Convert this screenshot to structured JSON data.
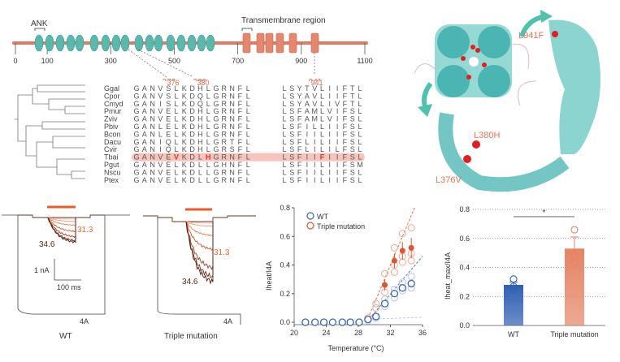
{
  "domain_panel": {
    "ank_label": "ANK",
    "tm_label": "Transmembrane region",
    "axis_ticks": [
      "0",
      "100",
      "300",
      "500",
      "700",
      "900",
      "1100"
    ],
    "axis_values": [
      0,
      100,
      300,
      500,
      700,
      900,
      1100
    ],
    "ank_repeat_count": 17,
    "tm_segment_count": 6,
    "sites": [
      {
        "label": "376",
        "value": 376
      },
      {
        "label": "380",
        "value": 380
      },
      {
        "label": "941",
        "value": 941
      }
    ],
    "colors": {
      "backbone": "#e07a63",
      "ank": "#5ab8ad",
      "tm": "#e5866e",
      "site_label": "#e2684f"
    }
  },
  "alignment": {
    "site_labels": [
      "376",
      "380",
      "941"
    ],
    "rows": [
      {
        "species": "Ggal",
        "seq1": "GANVSLKDHLGRNFL",
        "seq2": "LSYTVLIIFTL"
      },
      {
        "species": "Cpor",
        "seq1": "GANVSLKDQLGRNFL",
        "seq2": "LSYAVLIIFTL"
      },
      {
        "species": "Cmyd",
        "seq1": "GANISLKDQLGRNFL",
        "seq2": "LSYAVLIVFTL"
      },
      {
        "species": "Pmur",
        "seq1": "GANVELKDHLGRNFL",
        "seq2": "LSFAMLVIFSL"
      },
      {
        "species": "Zviv",
        "seq1": "GANVELKDHLGRNFL",
        "seq2": "LSFAMLVIFSL"
      },
      {
        "species": "Pbiv",
        "seq1": "GANLELKDHLGRNFL",
        "seq2": "LSFILLIIFSL"
      },
      {
        "species": "Bcon",
        "seq1": "GANLELKDHLGRNFL",
        "seq2": "LSFIILIIFSL"
      },
      {
        "species": "Dacu",
        "seq1": "GANIQLKDHLGRTFL",
        "seq2": "LSFLILIIFSL"
      },
      {
        "species": "Cvir",
        "seq1": "GANIQLKDHLGRSFL",
        "seq2": "LSFLILILFSL"
      },
      {
        "species": "Tbai",
        "seq1": "GANVEVKDLHGRNFL",
        "seq2": "LSFIIFIIFSL",
        "highlight": true,
        "mut1": [
          5,
          9
        ],
        "mut2": [
          5
        ]
      },
      {
        "species": "Pgut",
        "seq1": "GANVELKDLLGHNFL",
        "seq2": "LSFIILIIFSM"
      },
      {
        "species": "Nscu",
        "seq1": "GANVELKDLLGRNFL",
        "seq2": "LSFIILIIFSL"
      },
      {
        "species": "Ptex",
        "seq1": "GANVELKDLLGRNFL",
        "seq2": "LSFIILIIFSL"
      }
    ],
    "highlight_color": "#f7c3bb",
    "mutation_color": "#e8312a"
  },
  "structure": {
    "labels": [
      "L941F",
      "L380H",
      "L376V"
    ],
    "label_color": "#e5735c",
    "arrow_color": "#4fc2ae"
  },
  "traces": {
    "wt": {
      "title": "WT",
      "low_temp": "31.3",
      "high_temp": "34.6",
      "ref_label": "4A"
    },
    "triple": {
      "title": "Triple mutation",
      "low_temp": "31.3",
      "high_temp": "34.6",
      "ref_label": "4A"
    },
    "scale": {
      "y": "1 nA",
      "x": "100 ms"
    },
    "stimulus_color": "#ee5a24"
  },
  "chart_data": [
    {
      "type": "scatter",
      "title": "",
      "xlabel": "Temperature (°C)",
      "ylabel": "Iheat/I4A",
      "xlim": [
        20,
        36
      ],
      "ylim": [
        0,
        0.8
      ],
      "xticks": [
        20,
        24,
        28,
        32,
        36
      ],
      "yticks": [
        0.0,
        0.2,
        0.4,
        0.6,
        0.8
      ],
      "ytick_labels": [
        "0.0",
        "0.2",
        "0.4",
        "0.6",
        "0.8"
      ],
      "legend": {
        "position": "top-left",
        "entries": [
          "WT",
          "Triple mutation"
        ]
      },
      "series": [
        {
          "name": "WT",
          "color": "#3a66b5",
          "x": [
            21.4,
            22.6,
            23.7,
            24.8,
            26.0,
            27.0,
            28.1,
            29.2,
            30.2,
            31.3,
            32.5,
            33.5,
            34.6
          ],
          "y": [
            0,
            0,
            0,
            0,
            0,
            0,
            0,
            0.02,
            0.04,
            0.13,
            0.2,
            0.24,
            0.27
          ],
          "replicates": [
            [
              29.2,
              0.01
            ],
            [
              30.2,
              0.03
            ],
            [
              31.3,
              0.11
            ],
            [
              31.3,
              0.16
            ],
            [
              32.5,
              0.17
            ],
            [
              32.5,
              0.23
            ],
            [
              33.5,
              0.22
            ],
            [
              33.5,
              0.28
            ],
            [
              34.6,
              0.24
            ],
            [
              34.6,
              0.32
            ]
          ],
          "fit": [
            [
              29,
              0
            ],
            [
              36,
              0.46
            ]
          ],
          "baseline_fit": [
            [
              29,
              0.02
            ],
            [
              36,
              0.035
            ]
          ]
        },
        {
          "name": "Triple mutation",
          "color": "#e2542f",
          "x": [
            29.2,
            30.2,
            31.3,
            32.5,
            33.5,
            34.6
          ],
          "y": [
            0.03,
            0.1,
            0.26,
            0.43,
            0.5,
            0.52
          ],
          "err": [
            0.01,
            0.02,
            0.04,
            0.05,
            0.06,
            0.07
          ],
          "replicates": [
            [
              29.2,
              0.03
            ],
            [
              30.2,
              0.1
            ],
            [
              30.2,
              0.13
            ],
            [
              31.3,
              0.21
            ],
            [
              31.3,
              0.34
            ],
            [
              32.5,
              0.35
            ],
            [
              32.5,
              0.4
            ],
            [
              32.5,
              0.52
            ],
            [
              33.5,
              0.42
            ],
            [
              33.5,
              0.46
            ],
            [
              33.5,
              0.62
            ],
            [
              34.6,
              0.43
            ],
            [
              34.6,
              0.48
            ],
            [
              34.6,
              0.66
            ]
          ],
          "fit": [
            [
              29,
              0
            ],
            [
              35,
              0.8
            ]
          ]
        }
      ]
    },
    {
      "type": "bar",
      "title": "",
      "xlabel": "",
      "ylabel": "Iheat_max/I4A",
      "categories": [
        "WT",
        "Triple mutation"
      ],
      "values": [
        0.28,
        0.53
      ],
      "errors": [
        0.02,
        0.08
      ],
      "points": [
        [
          0.25,
          0.27,
          0.32
        ],
        [
          0.43,
          0.48,
          0.66
        ]
      ],
      "colors": [
        "#2f5fb3",
        "#e58464"
      ],
      "ylim": [
        0,
        0.8
      ],
      "yticks": [
        0.0,
        0.2,
        0.4,
        0.6,
        0.8
      ],
      "ytick_labels": [
        "0.0",
        "0.2",
        "0.4",
        "0.6",
        "0.8"
      ],
      "grid": true,
      "significance": "*"
    }
  ]
}
